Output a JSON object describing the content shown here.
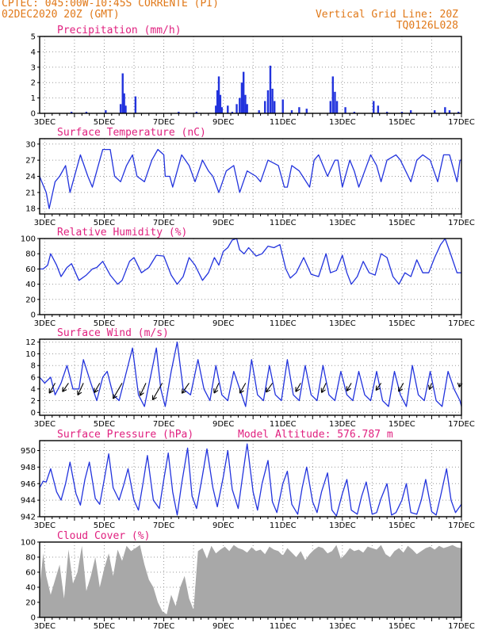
{
  "header": {
    "line1_left": "CPTEC:   045:00W-10:45S   CORRENTE (PI)",
    "line2_left": "02DEC2020 20Z (GMT)",
    "line1_right": "Vertical Grid Line: 20Z",
    "line2_right": "TQ0126L028"
  },
  "colors": {
    "line": "#2233dd",
    "title": "#e0207f",
    "header": "#e07818",
    "cloud": "#a8a8a8",
    "wind": "#000000"
  },
  "chart_data": [
    {
      "type": "bar",
      "title": "Precipitation (mm/h)",
      "ylim": [
        0,
        5
      ],
      "yticks": [
        0,
        1,
        2,
        3,
        4,
        5
      ],
      "x_start_day": 2.83,
      "x_end_day": 17,
      "date_ticks": [
        "3DEC",
        "5DEC",
        "7DEC",
        "9DEC",
        "11DEC",
        "13DEC",
        "15DEC",
        "17DEC"
      ],
      "events": [
        {
          "day": 3.9,
          "value": 0.1
        },
        {
          "day": 4.4,
          "value": 0.1
        },
        {
          "day": 5.05,
          "value": 0.2
        },
        {
          "day": 5.55,
          "value": 0.6
        },
        {
          "day": 5.62,
          "value": 2.6
        },
        {
          "day": 5.67,
          "value": 1.3
        },
        {
          "day": 5.72,
          "value": 0.5
        },
        {
          "day": 6.05,
          "value": 1.1
        },
        {
          "day": 7.5,
          "value": 0.1
        },
        {
          "day": 8.1,
          "value": 0.1
        },
        {
          "day": 8.75,
          "value": 0.5
        },
        {
          "day": 8.8,
          "value": 1.5
        },
        {
          "day": 8.85,
          "value": 2.4
        },
        {
          "day": 8.9,
          "value": 1.2
        },
        {
          "day": 8.95,
          "value": 0.4
        },
        {
          "day": 9.15,
          "value": 0.5
        },
        {
          "day": 9.3,
          "value": 0.1
        },
        {
          "day": 9.45,
          "value": 0.6
        },
        {
          "day": 9.55,
          "value": 1.0
        },
        {
          "day": 9.62,
          "value": 2.0
        },
        {
          "day": 9.68,
          "value": 2.7
        },
        {
          "day": 9.74,
          "value": 1.2
        },
        {
          "day": 9.8,
          "value": 0.6
        },
        {
          "day": 10.2,
          "value": 0.2
        },
        {
          "day": 10.4,
          "value": 0.8
        },
        {
          "day": 10.5,
          "value": 1.5
        },
        {
          "day": 10.58,
          "value": 3.1
        },
        {
          "day": 10.65,
          "value": 1.6
        },
        {
          "day": 10.72,
          "value": 0.8
        },
        {
          "day": 11.0,
          "value": 0.9
        },
        {
          "day": 11.3,
          "value": 0.2
        },
        {
          "day": 11.55,
          "value": 0.4
        },
        {
          "day": 11.8,
          "value": 0.3
        },
        {
          "day": 12.6,
          "value": 0.8
        },
        {
          "day": 12.68,
          "value": 2.4
        },
        {
          "day": 12.75,
          "value": 1.4
        },
        {
          "day": 12.82,
          "value": 0.8
        },
        {
          "day": 13.1,
          "value": 0.4
        },
        {
          "day": 13.4,
          "value": 0.1
        },
        {
          "day": 14.05,
          "value": 0.8
        },
        {
          "day": 14.2,
          "value": 0.5
        },
        {
          "day": 14.5,
          "value": 0.1
        },
        {
          "day": 15.0,
          "value": 0.1
        },
        {
          "day": 15.3,
          "value": 0.2
        },
        {
          "day": 16.1,
          "value": 0.2
        },
        {
          "day": 16.45,
          "value": 0.4
        },
        {
          "day": 16.6,
          "value": 0.2
        },
        {
          "day": 16.9,
          "value": 0.1
        }
      ]
    },
    {
      "type": "line",
      "title": "Surface Temperature (nC)",
      "ylim": [
        17,
        31
      ],
      "yticks": [
        18,
        21,
        24,
        27,
        30
      ],
      "x_start_day": 2.83,
      "x_end_day": 17,
      "date_ticks": [
        "3DEC",
        "5DEC",
        "7DEC",
        "9DEC",
        "11DEC",
        "13DEC",
        "15DEC",
        "17DEC"
      ],
      "x": [
        2.83,
        2.9,
        3.05,
        3.15,
        3.35,
        3.5,
        3.7,
        3.85,
        4.2,
        4.45,
        4.6,
        4.85,
        4.95,
        5.2,
        5.35,
        5.55,
        5.75,
        5.95,
        6.1,
        6.35,
        6.6,
        6.8,
        7.0,
        7.05,
        7.2,
        7.3,
        7.6,
        7.85,
        8.05,
        8.3,
        8.5,
        8.65,
        8.85,
        9.1,
        9.35,
        9.55,
        9.8,
        10.1,
        10.25,
        10.5,
        10.85,
        11.05,
        11.15,
        11.3,
        11.55,
        11.9,
        12.05,
        12.2,
        12.5,
        12.75,
        12.85,
        13.0,
        13.25,
        13.4,
        13.55,
        13.75,
        13.95,
        14.15,
        14.3,
        14.5,
        14.8,
        14.95,
        15.3,
        15.5,
        15.7,
        15.95,
        16.2,
        16.4,
        16.6,
        16.85,
        16.95,
        17.0
      ],
      "y": [
        24,
        23,
        21,
        18,
        23,
        24,
        26,
        21,
        28,
        24,
        22,
        27,
        29,
        29,
        24,
        23,
        26,
        28,
        24,
        23,
        27,
        29,
        28,
        24,
        24,
        22,
        28,
        26,
        23,
        27,
        25,
        24,
        21,
        25,
        26,
        21,
        25,
        24,
        23,
        27,
        26,
        22,
        22,
        26,
        25,
        22,
        27,
        28,
        24,
        27,
        27,
        22,
        27,
        25,
        22,
        25,
        28,
        26,
        23,
        27,
        28,
        27,
        23,
        27,
        28,
        27,
        23,
        28,
        28,
        23,
        27,
        27
      ]
    },
    {
      "type": "line",
      "title": "Relative Humidity (%)",
      "ylim": [
        0,
        100
      ],
      "yticks": [
        0,
        20,
        40,
        60,
        80,
        100
      ],
      "x_start_day": 2.83,
      "x_end_day": 17,
      "date_ticks": [
        "3DEC",
        "5DEC",
        "7DEC",
        "9DEC",
        "11DEC",
        "13DEC",
        "15DEC",
        "17DEC"
      ],
      "x": [
        2.83,
        2.95,
        3.1,
        3.2,
        3.4,
        3.55,
        3.75,
        3.9,
        4.15,
        4.4,
        4.6,
        4.75,
        4.95,
        5.2,
        5.45,
        5.6,
        5.85,
        6.0,
        6.25,
        6.5,
        6.75,
        7.0,
        7.25,
        7.45,
        7.65,
        7.85,
        8.05,
        8.3,
        8.5,
        8.7,
        8.85,
        9.0,
        9.15,
        9.3,
        9.45,
        9.55,
        9.7,
        9.85,
        10.1,
        10.3,
        10.5,
        10.7,
        10.9,
        11.1,
        11.25,
        11.45,
        11.7,
        11.95,
        12.2,
        12.45,
        12.6,
        12.8,
        13.0,
        13.15,
        13.3,
        13.5,
        13.7,
        13.9,
        14.1,
        14.3,
        14.5,
        14.7,
        14.9,
        15.1,
        15.3,
        15.5,
        15.7,
        15.9,
        16.1,
        16.3,
        16.45,
        16.65,
        16.85,
        17.0
      ],
      "y": [
        60,
        60,
        65,
        80,
        65,
        50,
        62,
        67,
        45,
        52,
        60,
        62,
        70,
        52,
        40,
        45,
        70,
        75,
        55,
        62,
        78,
        77,
        52,
        40,
        50,
        75,
        65,
        45,
        55,
        75,
        65,
        83,
        88,
        98,
        100,
        85,
        80,
        88,
        77,
        80,
        90,
        88,
        92,
        60,
        48,
        55,
        75,
        53,
        50,
        80,
        55,
        58,
        78,
        55,
        40,
        50,
        70,
        55,
        52,
        80,
        75,
        50,
        40,
        55,
        50,
        72,
        55,
        55,
        75,
        92,
        100,
        78,
        55,
        55
      ]
    },
    {
      "type": "line",
      "title": "Surface Wind (m/s)",
      "ylim": [
        -0.5,
        12.5
      ],
      "yticks": [
        0,
        2,
        4,
        6,
        8,
        10,
        12
      ],
      "x_start_day": 2.83,
      "x_end_day": 17,
      "date_ticks": [
        "3DEC",
        "5DEC",
        "7DEC",
        "9DEC",
        "11DEC",
        "13DEC",
        "15DEC",
        "17DEC"
      ],
      "x": [
        2.83,
        3.0,
        3.2,
        3.35,
        3.55,
        3.75,
        3.95,
        4.15,
        4.3,
        4.55,
        4.75,
        4.95,
        5.1,
        5.3,
        5.5,
        5.75,
        5.95,
        6.15,
        6.35,
        6.55,
        6.75,
        6.9,
        7.05,
        7.25,
        7.45,
        7.65,
        7.9,
        8.15,
        8.35,
        8.55,
        8.75,
        8.95,
        9.15,
        9.35,
        9.55,
        9.75,
        9.95,
        10.15,
        10.35,
        10.55,
        10.75,
        10.95,
        11.15,
        11.35,
        11.55,
        11.75,
        11.95,
        12.15,
        12.35,
        12.55,
        12.75,
        12.95,
        13.15,
        13.35,
        13.55,
        13.75,
        13.95,
        14.15,
        14.35,
        14.55,
        14.75,
        14.95,
        15.15,
        15.35,
        15.55,
        15.75,
        15.95,
        16.15,
        16.35,
        16.55,
        16.75,
        16.95,
        17.0
      ],
      "y": [
        6,
        5,
        6,
        3,
        5,
        8,
        4,
        4,
        9,
        5,
        2,
        6,
        7,
        3,
        2,
        7,
        11,
        3,
        1,
        6,
        11,
        4,
        1,
        7,
        12,
        4,
        3,
        9,
        4,
        2,
        8,
        3,
        2,
        7,
        4,
        1,
        9,
        3,
        2,
        8,
        3,
        2,
        9,
        3,
        2,
        8,
        3,
        2,
        8,
        3,
        2,
        7,
        3,
        2,
        7,
        3,
        2,
        7,
        2,
        1,
        7,
        3,
        1,
        8,
        3,
        2,
        7,
        2,
        1,
        7,
        4,
        2,
        1
      ],
      "arrows": [
        {
          "day": 3.35,
          "speed": 4.2,
          "dir_deg": 210
        },
        {
          "day": 3.8,
          "speed": 3.8,
          "dir_deg": 215
        },
        {
          "day": 4.3,
          "speed": 4.8,
          "dir_deg": 205
        },
        {
          "day": 4.85,
          "speed": 4.0,
          "dir_deg": 210
        },
        {
          "day": 5.6,
          "speed": 6.5,
          "dir_deg": 210
        },
        {
          "day": 6.4,
          "speed": 5.0,
          "dir_deg": 205
        },
        {
          "day": 6.95,
          "speed": 7.0,
          "dir_deg": 210
        },
        {
          "day": 7.85,
          "speed": 4.5,
          "dir_deg": 215
        },
        {
          "day": 8.85,
          "speed": 4.0,
          "dir_deg": 205
        },
        {
          "day": 9.75,
          "speed": 4.2,
          "dir_deg": 210
        },
        {
          "day": 10.65,
          "speed": 4.0,
          "dir_deg": 215
        },
        {
          "day": 11.6,
          "speed": 3.6,
          "dir_deg": 210
        },
        {
          "day": 12.45,
          "speed": 3.8,
          "dir_deg": 205
        },
        {
          "day": 13.3,
          "speed": 3.3,
          "dir_deg": 210
        },
        {
          "day": 14.3,
          "speed": 3.2,
          "dir_deg": 215
        },
        {
          "day": 15.05,
          "speed": 3.5,
          "dir_deg": 210
        },
        {
          "day": 16.0,
          "speed": 2.5,
          "dir_deg": 200
        },
        {
          "day": 16.95,
          "speed": 1.5,
          "dir_deg": 190
        }
      ]
    },
    {
      "type": "line",
      "title": "Surface Pressure (hPa)",
      "subtitle": "Model Altitude: 576.787 m",
      "ylim": [
        942,
        951.2
      ],
      "yticks": [
        942,
        944,
        946,
        948,
        950
      ],
      "x_start_day": 2.83,
      "x_end_day": 17,
      "date_ticks": [
        "3DEC",
        "5DEC",
        "7DEC",
        "9DEC",
        "11DEC",
        "13DEC",
        "15DEC",
        "17DEC"
      ],
      "x": [
        2.83,
        2.95,
        3.05,
        3.2,
        3.4,
        3.55,
        3.7,
        3.85,
        4.05,
        4.2,
        4.35,
        4.5,
        4.7,
        4.85,
        5.0,
        5.15,
        5.3,
        5.5,
        5.65,
        5.8,
        6.0,
        6.15,
        6.3,
        6.45,
        6.65,
        6.85,
        7.0,
        7.15,
        7.3,
        7.45,
        7.6,
        7.8,
        7.95,
        8.1,
        8.3,
        8.45,
        8.65,
        8.8,
        9.0,
        9.15,
        9.3,
        9.5,
        9.65,
        9.8,
        10.0,
        10.15,
        10.3,
        10.5,
        10.65,
        10.8,
        11.0,
        11.15,
        11.3,
        11.5,
        11.65,
        11.8,
        12.0,
        12.15,
        12.3,
        12.5,
        12.65,
        12.8,
        13.0,
        13.15,
        13.3,
        13.5,
        13.65,
        13.8,
        14.0,
        14.15,
        14.3,
        14.5,
        14.65,
        14.8,
        15.0,
        15.15,
        15.3,
        15.5,
        15.65,
        15.8,
        16.0,
        16.15,
        16.3,
        16.5,
        16.65,
        16.8,
        17.0
      ],
      "y": [
        945.5,
        946.3,
        946.2,
        947.8,
        945.0,
        944.0,
        946.0,
        948.6,
        944.8,
        943.4,
        946.5,
        948.6,
        944.2,
        943.5,
        946.5,
        949.6,
        945.5,
        944.0,
        945.8,
        947.8,
        944.0,
        942.8,
        946.0,
        949.4,
        944.0,
        943.0,
        946.5,
        949.7,
        945.0,
        942.2,
        946.0,
        950.3,
        944.5,
        943.0,
        947.0,
        950.2,
        945.5,
        943.2,
        946.8,
        950.0,
        945.3,
        943.0,
        947.0,
        950.8,
        945.0,
        942.8,
        946.0,
        948.8,
        943.8,
        942.5,
        946.0,
        947.5,
        943.5,
        942.3,
        945.5,
        948.0,
        943.8,
        942.5,
        945.0,
        947.3,
        942.8,
        942.1,
        944.8,
        946.5,
        942.8,
        942.3,
        944.5,
        946.2,
        942.3,
        942.5,
        944.2,
        946.0,
        942.2,
        942.5,
        944.0,
        946.0,
        942.5,
        942.3,
        944.0,
        946.5,
        942.6,
        942.2,
        944.5,
        947.8,
        944.0,
        942.5,
        943.5
      ]
    },
    {
      "type": "area",
      "title": "Cloud Cover (%)",
      "ylim": [
        0,
        100
      ],
      "yticks": [
        0,
        20,
        40,
        60,
        80,
        100
      ],
      "x_start_day": 2.83,
      "x_end_day": 17,
      "date_ticks": [
        "3DEC",
        "5DEC",
        "7DEC",
        "9DEC",
        "11DEC",
        "13DEC",
        "15DEC",
        "17DEC"
      ],
      "x": [
        2.83,
        2.95,
        3.05,
        3.2,
        3.35,
        3.5,
        3.65,
        3.8,
        3.95,
        4.1,
        4.25,
        4.4,
        4.55,
        4.7,
        4.85,
        5.0,
        5.15,
        5.3,
        5.45,
        5.6,
        5.75,
        5.9,
        6.05,
        6.2,
        6.35,
        6.5,
        6.65,
        6.8,
        6.95,
        7.1,
        7.25,
        7.4,
        7.55,
        7.7,
        7.85,
        8.0,
        8.15,
        8.3,
        8.45,
        8.6,
        8.75,
        8.9,
        9.05,
        9.2,
        9.35,
        9.5,
        9.65,
        9.8,
        9.95,
        10.1,
        10.25,
        10.4,
        10.55,
        10.7,
        10.85,
        11.0,
        11.15,
        11.3,
        11.45,
        11.6,
        11.75,
        11.9,
        12.05,
        12.2,
        12.35,
        12.5,
        12.65,
        12.8,
        12.95,
        13.1,
        13.25,
        13.4,
        13.55,
        13.7,
        13.85,
        14.0,
        14.15,
        14.3,
        14.45,
        14.6,
        14.75,
        14.9,
        15.05,
        15.2,
        15.35,
        15.5,
        15.65,
        15.8,
        15.95,
        16.1,
        16.25,
        16.4,
        16.55,
        16.7,
        16.85,
        17.0
      ],
      "y": [
        40,
        85,
        55,
        30,
        50,
        70,
        25,
        90,
        45,
        60,
        95,
        35,
        55,
        80,
        40,
        65,
        85,
        55,
        90,
        75,
        95,
        88,
        92,
        96,
        70,
        50,
        40,
        20,
        8,
        4,
        30,
        15,
        40,
        55,
        25,
        10,
        88,
        92,
        78,
        95,
        85,
        90,
        94,
        88,
        96,
        92,
        90,
        86,
        93,
        88,
        90,
        84,
        94,
        90,
        88,
        82,
        92,
        86,
        80,
        88,
        76,
        84,
        90,
        94,
        92,
        85,
        88,
        96,
        78,
        84,
        92,
        88,
        90,
        86,
        94,
        92,
        90,
        96,
        84,
        80,
        88,
        92,
        86,
        95,
        90,
        84,
        88,
        92,
        94,
        90,
        95,
        92,
        94,
        96,
        93,
        92
      ]
    }
  ]
}
